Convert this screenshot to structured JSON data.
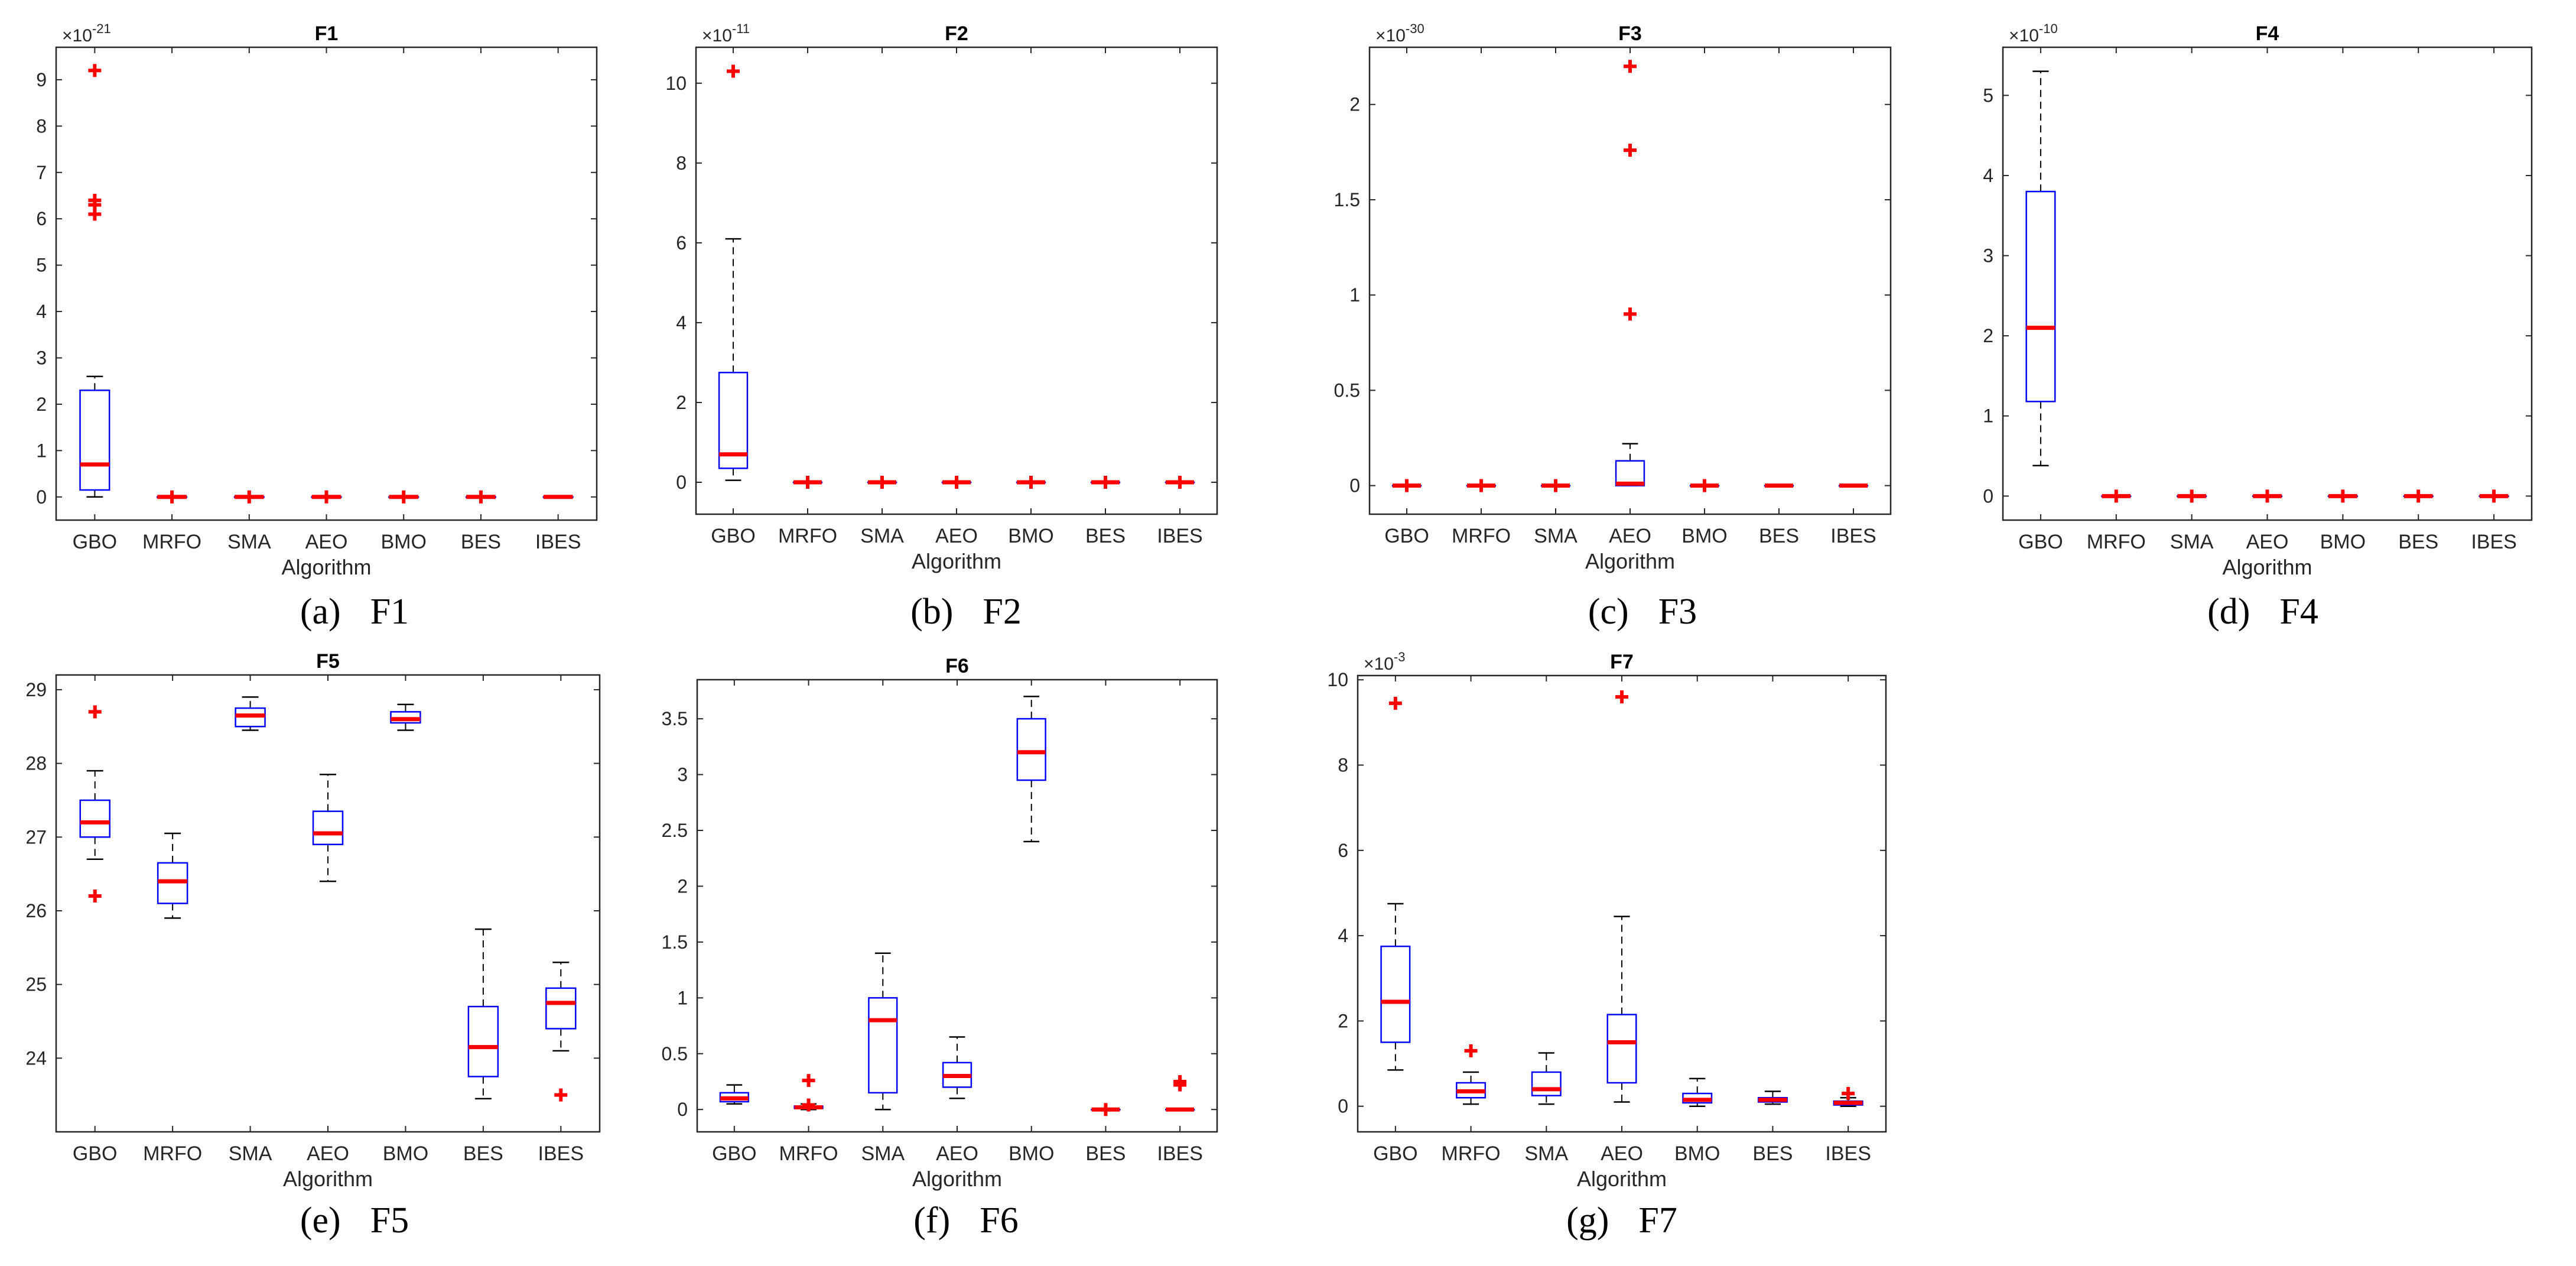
{
  "chart_data": [
    {
      "type": "box",
      "title": "F1",
      "caption_label": "(a)",
      "caption_name": "F1",
      "xlabel": "Algorithm",
      "ylabel": "",
      "exponent_base": "×10",
      "exponent_power": "-21",
      "ylim": [
        -0.5,
        9.7
      ],
      "yticks": [
        0,
        1,
        2,
        3,
        4,
        5,
        6,
        7,
        8,
        9
      ],
      "categories": [
        "GBO",
        "MRFO",
        "SMA",
        "AEO",
        "BMO",
        "BES",
        "IBES"
      ],
      "boxes": [
        {
          "min": 0.0,
          "q1": 0.15,
          "median": 0.7,
          "q3": 2.3,
          "max": 2.6,
          "outliers": [
            6.1,
            6.3,
            6.4,
            9.2
          ]
        },
        {
          "min": 0.0,
          "q1": 0.0,
          "median": 0.0,
          "q3": 0.0,
          "max": 0.0,
          "outliers": [
            0.0
          ]
        },
        {
          "min": 0.0,
          "q1": 0.0,
          "median": 0.0,
          "q3": 0.0,
          "max": 0.0,
          "outliers": [
            0.0
          ]
        },
        {
          "min": 0.0,
          "q1": 0.0,
          "median": 0.0,
          "q3": 0.0,
          "max": 0.0,
          "outliers": [
            0.0
          ]
        },
        {
          "min": 0.0,
          "q1": 0.0,
          "median": 0.0,
          "q3": 0.0,
          "max": 0.0,
          "outliers": [
            0.0
          ]
        },
        {
          "min": 0.0,
          "q1": 0.0,
          "median": 0.0,
          "q3": 0.0,
          "max": 0.0,
          "outliers": [
            0.0
          ]
        },
        {
          "min": 0.0,
          "q1": 0.0,
          "median": 0.0,
          "q3": 0.0,
          "max": 0.0,
          "outliers": []
        }
      ]
    },
    {
      "type": "box",
      "title": "F2",
      "caption_label": "(b)",
      "caption_name": "F2",
      "xlabel": "Algorithm",
      "ylabel": "",
      "exponent_base": "×10",
      "exponent_power": "-11",
      "ylim": [
        -0.8,
        10.9
      ],
      "yticks": [
        0,
        2,
        4,
        6,
        8,
        10
      ],
      "categories": [
        "GBO",
        "MRFO",
        "SMA",
        "AEO",
        "BMO",
        "BES",
        "IBES"
      ],
      "boxes": [
        {
          "min": 0.05,
          "q1": 0.35,
          "median": 0.7,
          "q3": 2.75,
          "max": 6.1,
          "outliers": [
            10.3
          ]
        },
        {
          "min": 0.0,
          "q1": 0.0,
          "median": 0.0,
          "q3": 0.0,
          "max": 0.0,
          "outliers": [
            0.0
          ]
        },
        {
          "min": 0.0,
          "q1": 0.0,
          "median": 0.0,
          "q3": 0.0,
          "max": 0.0,
          "outliers": [
            0.0
          ]
        },
        {
          "min": 0.0,
          "q1": 0.0,
          "median": 0.0,
          "q3": 0.0,
          "max": 0.0,
          "outliers": [
            0.0
          ]
        },
        {
          "min": 0.0,
          "q1": 0.0,
          "median": 0.0,
          "q3": 0.0,
          "max": 0.0,
          "outliers": [
            0.0
          ]
        },
        {
          "min": 0.0,
          "q1": 0.0,
          "median": 0.0,
          "q3": 0.0,
          "max": 0.0,
          "outliers": [
            0.0
          ]
        },
        {
          "min": 0.0,
          "q1": 0.0,
          "median": 0.0,
          "q3": 0.0,
          "max": 0.0,
          "outliers": [
            0.0
          ]
        }
      ]
    },
    {
      "type": "box",
      "title": "F3",
      "caption_label": "(c)",
      "caption_name": "F3",
      "xlabel": "Algorithm",
      "ylabel": "",
      "exponent_base": "×10",
      "exponent_power": "-30",
      "ylim": [
        -0.15,
        2.3
      ],
      "yticks": [
        0,
        0.5,
        1,
        1.5,
        2
      ],
      "categories": [
        "GBO",
        "MRFO",
        "SMA",
        "AEO",
        "BMO",
        "BES",
        "IBES"
      ],
      "boxes": [
        {
          "min": 0.0,
          "q1": 0.0,
          "median": 0.0,
          "q3": 0.0,
          "max": 0.0,
          "outliers": [
            0.0
          ]
        },
        {
          "min": 0.0,
          "q1": 0.0,
          "median": 0.0,
          "q3": 0.0,
          "max": 0.0,
          "outliers": [
            0.0
          ]
        },
        {
          "min": 0.0,
          "q1": 0.0,
          "median": 0.0,
          "q3": 0.0,
          "max": 0.0,
          "outliers": [
            0.0
          ]
        },
        {
          "min": 0.0,
          "q1": 0.0,
          "median": 0.01,
          "q3": 0.13,
          "max": 0.22,
          "outliers": [
            0.9,
            1.76,
            2.2
          ]
        },
        {
          "min": 0.0,
          "q1": 0.0,
          "median": 0.0,
          "q3": 0.0,
          "max": 0.0,
          "outliers": [
            0.0
          ]
        },
        {
          "min": 0.0,
          "q1": 0.0,
          "median": 0.0,
          "q3": 0.0,
          "max": 0.0,
          "outliers": []
        },
        {
          "min": 0.0,
          "q1": 0.0,
          "median": 0.0,
          "q3": 0.0,
          "max": 0.0,
          "outliers": []
        }
      ]
    },
    {
      "type": "box",
      "title": "F4",
      "caption_label": "(d)",
      "caption_name": "F4",
      "xlabel": "Algorithm",
      "ylabel": "",
      "exponent_base": "×10",
      "exponent_power": "-10",
      "ylim": [
        -0.3,
        5.6
      ],
      "yticks": [
        0,
        1,
        2,
        3,
        4,
        5
      ],
      "categories": [
        "GBO",
        "MRFO",
        "SMA",
        "AEO",
        "BMO",
        "BES",
        "IBES"
      ],
      "boxes": [
        {
          "min": 0.38,
          "q1": 1.18,
          "median": 2.1,
          "q3": 3.8,
          "max": 5.3,
          "outliers": []
        },
        {
          "min": 0.0,
          "q1": 0.0,
          "median": 0.0,
          "q3": 0.0,
          "max": 0.0,
          "outliers": [
            0.0
          ]
        },
        {
          "min": 0.0,
          "q1": 0.0,
          "median": 0.0,
          "q3": 0.0,
          "max": 0.0,
          "outliers": [
            0.0
          ]
        },
        {
          "min": 0.0,
          "q1": 0.0,
          "median": 0.0,
          "q3": 0.0,
          "max": 0.0,
          "outliers": [
            0.0
          ]
        },
        {
          "min": 0.0,
          "q1": 0.0,
          "median": 0.0,
          "q3": 0.0,
          "max": 0.0,
          "outliers": [
            0.0
          ]
        },
        {
          "min": 0.0,
          "q1": 0.0,
          "median": 0.0,
          "q3": 0.0,
          "max": 0.0,
          "outliers": [
            0.0
          ]
        },
        {
          "min": 0.0,
          "q1": 0.0,
          "median": 0.0,
          "q3": 0.0,
          "max": 0.0,
          "outliers": [
            0.0
          ]
        }
      ]
    },
    {
      "type": "box",
      "title": "F5",
      "caption_label": "(e)",
      "caption_name": "F5",
      "xlabel": "Algorithm",
      "ylabel": "",
      "exponent_base": "",
      "exponent_power": "",
      "ylim": [
        23.0,
        29.2
      ],
      "yticks": [
        24,
        25,
        26,
        27,
        28,
        29
      ],
      "categories": [
        "GBO",
        "MRFO",
        "SMA",
        "AEO",
        "BMO",
        "BES",
        "IBES"
      ],
      "boxes": [
        {
          "min": 26.7,
          "q1": 27.0,
          "median": 27.2,
          "q3": 27.5,
          "max": 27.9,
          "outliers": [
            26.2,
            28.7
          ]
        },
        {
          "min": 25.9,
          "q1": 26.1,
          "median": 26.4,
          "q3": 26.65,
          "max": 27.05,
          "outliers": []
        },
        {
          "min": 28.45,
          "q1": 28.5,
          "median": 28.65,
          "q3": 28.75,
          "max": 28.9,
          "outliers": []
        },
        {
          "min": 26.4,
          "q1": 26.9,
          "median": 27.05,
          "q3": 27.35,
          "max": 27.85,
          "outliers": []
        },
        {
          "min": 28.45,
          "q1": 28.55,
          "median": 28.6,
          "q3": 28.7,
          "max": 28.8,
          "outliers": []
        },
        {
          "min": 23.45,
          "q1": 23.75,
          "median": 24.15,
          "q3": 24.7,
          "max": 25.75,
          "outliers": []
        },
        {
          "min": 24.1,
          "q1": 24.4,
          "median": 24.75,
          "q3": 24.95,
          "max": 25.3,
          "outliers": [
            23.5
          ]
        }
      ]
    },
    {
      "type": "box",
      "title": "F6",
      "caption_label": "(f)",
      "caption_name": "F6",
      "xlabel": "Algorithm",
      "ylabel": "",
      "exponent_base": "",
      "exponent_power": "",
      "ylim": [
        -0.2,
        3.85
      ],
      "yticks": [
        0,
        0.5,
        1,
        1.5,
        2,
        2.5,
        3,
        3.5
      ],
      "categories": [
        "GBO",
        "MRFO",
        "SMA",
        "AEO",
        "BMO",
        "BES",
        "IBES"
      ],
      "boxes": [
        {
          "min": 0.05,
          "q1": 0.07,
          "median": 0.1,
          "q3": 0.15,
          "max": 0.22,
          "outliers": []
        },
        {
          "min": 0.0,
          "q1": 0.01,
          "median": 0.02,
          "q3": 0.03,
          "max": 0.05,
          "outliers": [
            0.26,
            0.04
          ]
        },
        {
          "min": 0.0,
          "q1": 0.15,
          "median": 0.8,
          "q3": 1.0,
          "max": 1.4,
          "outliers": []
        },
        {
          "min": 0.1,
          "q1": 0.2,
          "median": 0.3,
          "q3": 0.42,
          "max": 0.65,
          "outliers": []
        },
        {
          "min": 2.4,
          "q1": 2.95,
          "median": 3.2,
          "q3": 3.5,
          "max": 3.7,
          "outliers": []
        },
        {
          "min": 0.0,
          "q1": 0.0,
          "median": 0.0,
          "q3": 0.0,
          "max": 0.0,
          "outliers": [
            0.0
          ]
        },
        {
          "min": 0.0,
          "q1": 0.0,
          "median": 0.0,
          "q3": 0.0,
          "max": 0.0,
          "outliers": [
            0.22,
            0.25
          ]
        }
      ]
    },
    {
      "type": "box",
      "title": "F7",
      "caption_label": "(g)",
      "caption_name": "F7",
      "xlabel": "Algorithm",
      "ylabel": "",
      "exponent_base": "×10",
      "exponent_power": "-3",
      "ylim": [
        -0.6,
        10.1
      ],
      "yticks": [
        0,
        2,
        4,
        6,
        8,
        10
      ],
      "categories": [
        "GBO",
        "MRFO",
        "SMA",
        "AEO",
        "BMO",
        "BES",
        "IBES"
      ],
      "boxes": [
        {
          "min": 0.85,
          "q1": 1.5,
          "median": 2.45,
          "q3": 3.75,
          "max": 4.75,
          "outliers": [
            9.45
          ]
        },
        {
          "min": 0.05,
          "q1": 0.2,
          "median": 0.35,
          "q3": 0.55,
          "max": 0.8,
          "outliers": [
            1.3
          ]
        },
        {
          "min": 0.05,
          "q1": 0.25,
          "median": 0.4,
          "q3": 0.8,
          "max": 1.25,
          "outliers": []
        },
        {
          "min": 0.1,
          "q1": 0.55,
          "median": 1.5,
          "q3": 2.15,
          "max": 4.45,
          "outliers": [
            9.6
          ]
        },
        {
          "min": 0.0,
          "q1": 0.08,
          "median": 0.15,
          "q3": 0.3,
          "max": 0.65,
          "outliers": []
        },
        {
          "min": 0.05,
          "q1": 0.1,
          "median": 0.15,
          "q3": 0.2,
          "max": 0.35,
          "outliers": []
        },
        {
          "min": 0.0,
          "q1": 0.03,
          "median": 0.08,
          "q3": 0.12,
          "max": 0.2,
          "outliers": [
            0.3
          ]
        }
      ]
    }
  ],
  "colors": {
    "box": "#0000ff",
    "median": "#ff0000",
    "outlier": "#ff0000",
    "whisker": "#000000",
    "axis": "#262626"
  }
}
